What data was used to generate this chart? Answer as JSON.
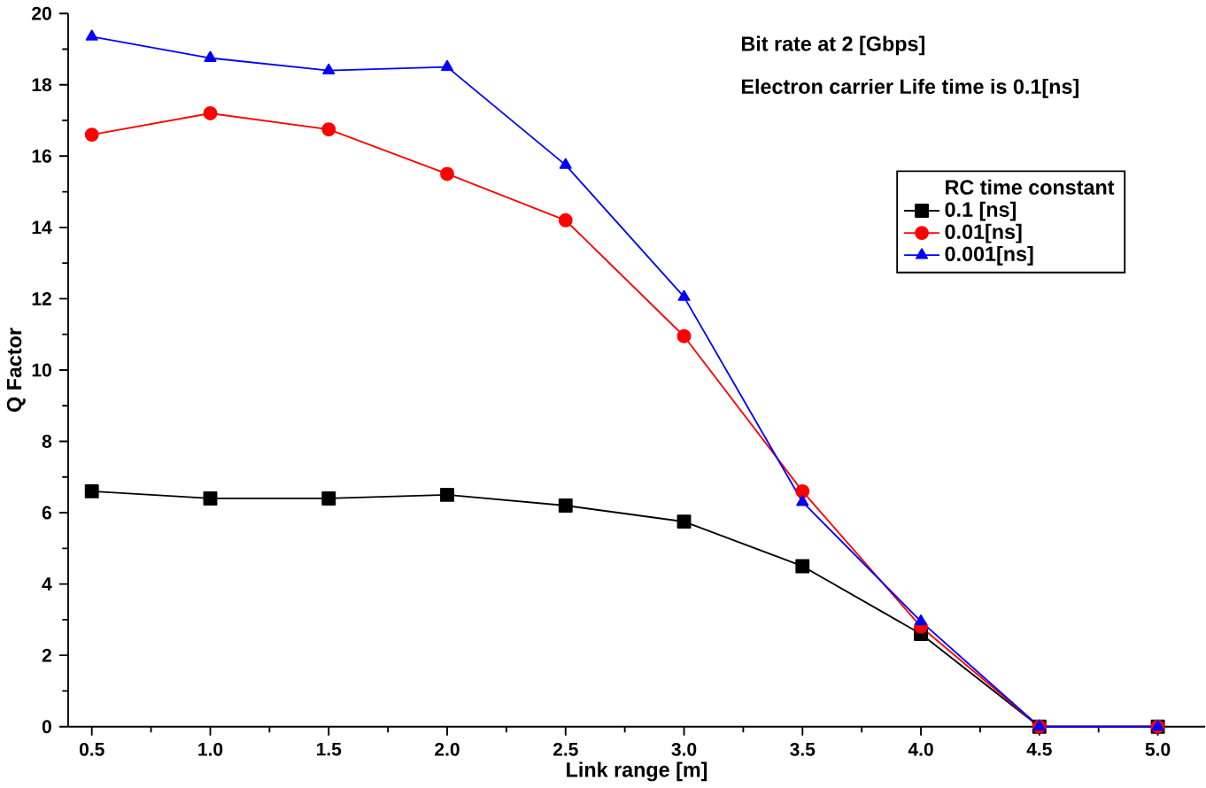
{
  "chart_data": {
    "type": "line",
    "xlabel": "Link range [m]",
    "ylabel": "Q Factor",
    "legend_title": "RC time constant",
    "legend": "top right",
    "line_style": "solid",
    "grid": false,
    "annotations": [
      "Bit rate at 2 [Gbps]",
      "Electron carrier Life time is 0.1[ns]"
    ],
    "x": [
      0.5,
      1.0,
      1.5,
      2.0,
      2.5,
      3.0,
      3.5,
      4.0,
      4.5,
      5.0
    ],
    "xlim": [
      0.4,
      5.2
    ],
    "xticks": [
      {
        "value": 0.5,
        "label": "0.5"
      },
      {
        "value": 1.0,
        "label": "1.0"
      },
      {
        "value": 1.5,
        "label": "1.5"
      },
      {
        "value": 2.0,
        "label": "2.0"
      },
      {
        "value": 2.5,
        "label": "2.5"
      },
      {
        "value": 3.0,
        "label": "3.0"
      },
      {
        "value": 3.5,
        "label": "3.5"
      },
      {
        "value": 4.0,
        "label": "4.0"
      },
      {
        "value": 4.5,
        "label": "4.5"
      },
      {
        "value": 5.0,
        "label": "5.0"
      }
    ],
    "ylim": [
      0,
      20
    ],
    "yticks": [
      0,
      2,
      4,
      6,
      8,
      10,
      12,
      14,
      16,
      18,
      20
    ],
    "series": [
      {
        "name": "0.1 [ns]",
        "color": "#000000",
        "marker": "square",
        "values": [
          6.6,
          6.4,
          6.4,
          6.5,
          6.2,
          5.75,
          4.5,
          2.6,
          0,
          0
        ]
      },
      {
        "name": "0.01[ns]",
        "color": "#ff0000",
        "marker": "circle",
        "values": [
          16.6,
          17.2,
          16.75,
          15.5,
          14.2,
          10.95,
          6.6,
          2.8,
          0,
          0
        ]
      },
      {
        "name": "0.001[ns]",
        "color": "#0000ff",
        "marker": "triangle",
        "values": [
          19.35,
          18.75,
          18.4,
          18.5,
          15.75,
          12.05,
          6.3,
          2.95,
          0,
          0
        ]
      }
    ]
  }
}
